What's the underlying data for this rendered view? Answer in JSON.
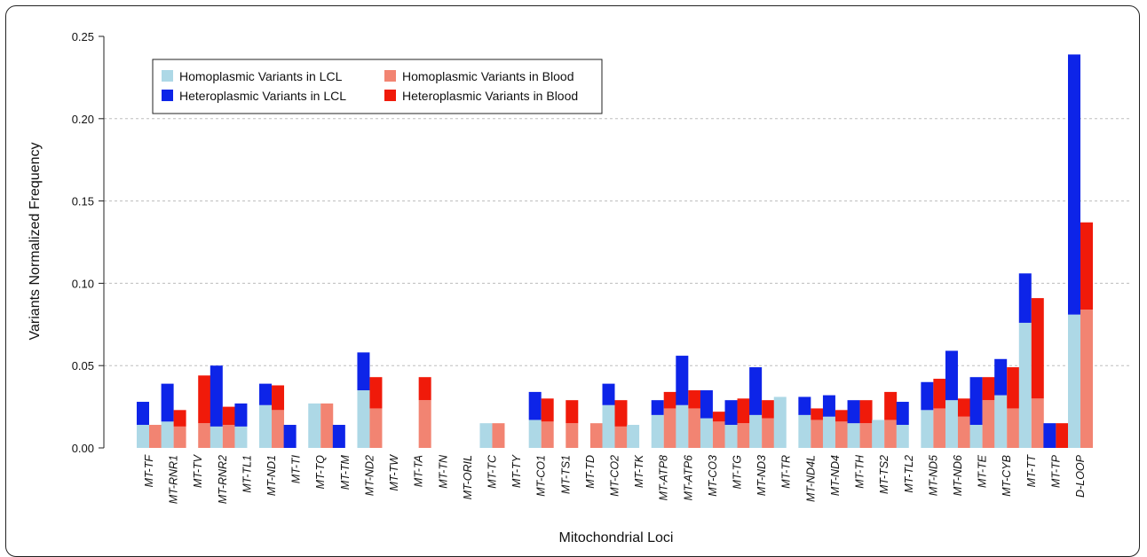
{
  "chart_data": {
    "type": "bar",
    "title": "",
    "xlabel": "Mitochondrial Loci",
    "ylabel": "Variants Normalized Frequency",
    "ylim": [
      0,
      0.25
    ],
    "yticks": [
      "0.00",
      "0.05",
      "0.10",
      "0.15",
      "0.20",
      "0.25"
    ],
    "grid": "horizontal-dotted",
    "legend_position": "top-left",
    "categories": [
      "MT-TF",
      "MT-RNR1",
      "MT-TV",
      "MT-RNR2",
      "MT-TL1",
      "MT-ND1",
      "MT-TI",
      "MT-TQ",
      "MT-TM",
      "MT-ND2",
      "MT-TW",
      "MT-TA",
      "MT-TN",
      "MT-ORIL",
      "MT-TC",
      "MT-TY",
      "MT-CO1",
      "MT-TS1",
      "MT-TD",
      "MT-CO2",
      "MT-TK",
      "MT-ATP8",
      "MT-ATP6",
      "MT-CO3",
      "MT-TG",
      "MT-ND3",
      "MT-TR",
      "MT-ND4L",
      "MT-ND4",
      "MT-TH",
      "MT-TS2",
      "MT-TL2",
      "MT-ND5",
      "MT-ND6",
      "MT-TE",
      "MT-CYB",
      "MT-TT",
      "MT-TP",
      "D-LOOP"
    ],
    "series": [
      {
        "name": "Homoplasmic Variants in LCL",
        "color": "#add8e6",
        "values": [
          0.014,
          0.016,
          0.0,
          0.013,
          0.013,
          0.026,
          0.0,
          0.027,
          0.0,
          0.035,
          0.0,
          0.0,
          0.0,
          0.0,
          0.015,
          0.0,
          0.017,
          0.0,
          0.0,
          0.026,
          0.014,
          0.02,
          0.026,
          0.018,
          0.014,
          0.02,
          0.031,
          0.02,
          0.019,
          0.015,
          0.017,
          0.014,
          0.023,
          0.029,
          0.014,
          0.032,
          0.076,
          0.0,
          0.081
        ]
      },
      {
        "name": "Heteroplasmic Variants in LCL",
        "color": "#0d24e8",
        "values": [
          0.014,
          0.023,
          0.0,
          0.037,
          0.014,
          0.013,
          0.014,
          0.0,
          0.014,
          0.023,
          0.0,
          0.0,
          0.0,
          0.0,
          0.0,
          0.0,
          0.017,
          0.0,
          0.0,
          0.013,
          0.0,
          0.009,
          0.03,
          0.017,
          0.015,
          0.029,
          0.0,
          0.011,
          0.013,
          0.014,
          0.0,
          0.014,
          0.017,
          0.03,
          0.029,
          0.022,
          0.03,
          0.015,
          0.158
        ]
      },
      {
        "name": "Homoplasmic Variants in Blood",
        "color": "#f28472",
        "values": [
          0.014,
          0.013,
          0.015,
          0.014,
          0.0,
          0.023,
          0.0,
          0.027,
          0.0,
          0.024,
          0.0,
          0.029,
          0.0,
          0.0,
          0.015,
          0.0,
          0.016,
          0.015,
          0.015,
          0.013,
          0.0,
          0.024,
          0.024,
          0.016,
          0.015,
          0.018,
          0.0,
          0.017,
          0.016,
          0.015,
          0.017,
          0.0,
          0.024,
          0.019,
          0.029,
          0.024,
          0.03,
          0.0,
          0.084
        ]
      },
      {
        "name": "Heteroplasmic Variants in Blood",
        "color": "#f01a0a",
        "values": [
          0.0,
          0.01,
          0.029,
          0.011,
          0.0,
          0.015,
          0.0,
          0.0,
          0.0,
          0.019,
          0.0,
          0.014,
          0.0,
          0.0,
          0.0,
          0.0,
          0.014,
          0.014,
          0.0,
          0.016,
          0.0,
          0.01,
          0.011,
          0.006,
          0.015,
          0.011,
          0.0,
          0.007,
          0.007,
          0.014,
          0.017,
          0.0,
          0.018,
          0.011,
          0.014,
          0.025,
          0.061,
          0.015,
          0.053
        ]
      }
    ]
  }
}
